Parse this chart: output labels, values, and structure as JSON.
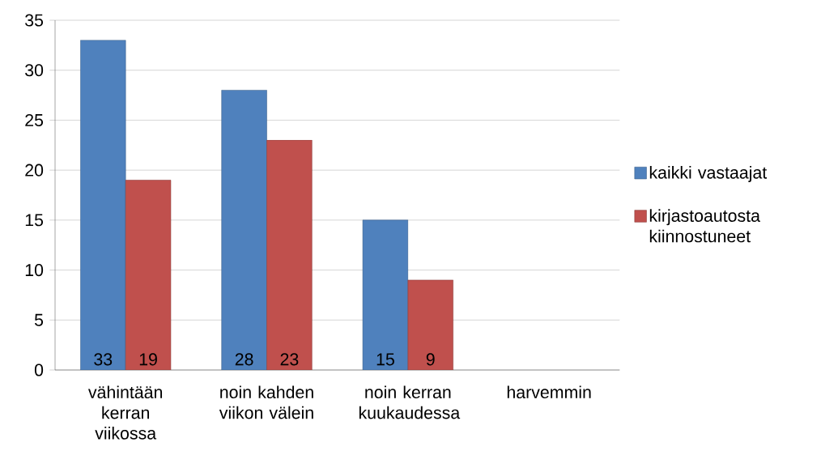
{
  "chart_data": {
    "type": "bar",
    "categories": [
      "vähintään kerran viikossa",
      "noin kahden viikon välein",
      "noin kerran kuukaudessa",
      "harvemmin"
    ],
    "series": [
      {
        "name": "kaikki vastaajat",
        "color": "#4f81bd",
        "values": [
          33,
          28,
          15,
          null
        ]
      },
      {
        "name": "kirjastoautosta kiinnostuneet",
        "color": "#c0504d",
        "values": [
          19,
          23,
          9,
          null
        ]
      }
    ],
    "ylim": [
      0,
      35
    ],
    "yticks": [
      0,
      5,
      10,
      15,
      20,
      25,
      30,
      35
    ],
    "grid": "y",
    "legend": "right",
    "data_labels": true
  }
}
